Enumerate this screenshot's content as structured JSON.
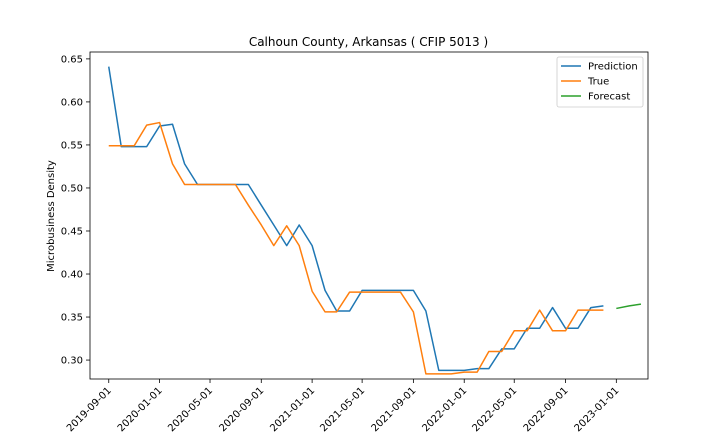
{
  "chart_data": {
    "type": "line",
    "title": "Calhoun County, Arkansas ( CFIP 5013 )",
    "xlabel": "",
    "ylabel": "Microbusiness Density",
    "x_ticks": [
      "2019-09-01",
      "2020-01-01",
      "2020-05-01",
      "2020-09-01",
      "2021-01-01",
      "2021-05-01",
      "2021-09-01",
      "2022-01-01",
      "2022-05-01",
      "2022-09-01",
      "2023-01-01"
    ],
    "y_ticks": [
      "0.30",
      "0.35",
      "0.40",
      "0.45",
      "0.50",
      "0.55",
      "0.60",
      "0.65"
    ],
    "ylim": [
      0.278,
      0.658
    ],
    "xlim": [
      "2019-07-18",
      "2023-03-18"
    ],
    "legend_position": "top-right",
    "grid": false,
    "series": [
      {
        "name": "Prediction",
        "color": "#1f77b4",
        "points": [
          [
            "2019-09-01",
            0.641
          ],
          [
            "2019-10-01",
            0.548
          ],
          [
            "2019-11-01",
            0.548
          ],
          [
            "2019-12-01",
            0.548
          ],
          [
            "2020-01-01",
            0.572
          ],
          [
            "2020-02-01",
            0.574
          ],
          [
            "2020-03-01",
            0.528
          ],
          [
            "2020-04-01",
            0.504
          ],
          [
            "2020-05-01",
            0.504
          ],
          [
            "2020-06-01",
            0.504
          ],
          [
            "2020-07-01",
            0.504
          ],
          [
            "2020-08-01",
            0.504
          ],
          [
            "2020-09-01",
            0.48
          ],
          [
            "2020-10-01",
            0.457
          ],
          [
            "2020-11-01",
            0.433
          ],
          [
            "2020-12-01",
            0.457
          ],
          [
            "2021-01-01",
            0.433
          ],
          [
            "2021-02-01",
            0.381
          ],
          [
            "2021-03-01",
            0.357
          ],
          [
            "2021-04-01",
            0.357
          ],
          [
            "2021-05-01",
            0.381
          ],
          [
            "2021-06-01",
            0.381
          ],
          [
            "2021-07-01",
            0.381
          ],
          [
            "2021-08-01",
            0.381
          ],
          [
            "2021-09-01",
            0.381
          ],
          [
            "2021-10-01",
            0.357
          ],
          [
            "2021-11-01",
            0.288
          ],
          [
            "2021-12-01",
            0.288
          ],
          [
            "2022-01-01",
            0.288
          ],
          [
            "2022-02-01",
            0.29
          ],
          [
            "2022-03-01",
            0.29
          ],
          [
            "2022-04-01",
            0.313
          ],
          [
            "2022-05-01",
            0.313
          ],
          [
            "2022-06-01",
            0.337
          ],
          [
            "2022-07-01",
            0.337
          ],
          [
            "2022-08-01",
            0.361
          ],
          [
            "2022-09-01",
            0.337
          ],
          [
            "2022-10-01",
            0.337
          ],
          [
            "2022-11-01",
            0.361
          ],
          [
            "2022-12-01",
            0.363
          ]
        ]
      },
      {
        "name": "True",
        "color": "#ff7f0e",
        "points": [
          [
            "2019-09-01",
            0.549
          ],
          [
            "2019-10-01",
            0.549
          ],
          [
            "2019-11-01",
            0.549
          ],
          [
            "2019-12-01",
            0.573
          ],
          [
            "2020-01-01",
            0.576
          ],
          [
            "2020-02-01",
            0.528
          ],
          [
            "2020-03-01",
            0.504
          ],
          [
            "2020-04-01",
            0.504
          ],
          [
            "2020-05-01",
            0.504
          ],
          [
            "2020-06-01",
            0.504
          ],
          [
            "2020-07-01",
            0.504
          ],
          [
            "2020-08-01",
            0.48
          ],
          [
            "2020-09-01",
            0.457
          ],
          [
            "2020-10-01",
            0.433
          ],
          [
            "2020-11-01",
            0.456
          ],
          [
            "2020-12-01",
            0.433
          ],
          [
            "2021-01-01",
            0.38
          ],
          [
            "2021-02-01",
            0.356
          ],
          [
            "2021-03-01",
            0.356
          ],
          [
            "2021-04-01",
            0.379
          ],
          [
            "2021-05-01",
            0.379
          ],
          [
            "2021-06-01",
            0.379
          ],
          [
            "2021-07-01",
            0.379
          ],
          [
            "2021-08-01",
            0.379
          ],
          [
            "2021-09-01",
            0.356
          ],
          [
            "2021-10-01",
            0.284
          ],
          [
            "2021-11-01",
            0.284
          ],
          [
            "2021-12-01",
            0.284
          ],
          [
            "2022-01-01",
            0.286
          ],
          [
            "2022-02-01",
            0.286
          ],
          [
            "2022-03-01",
            0.31
          ],
          [
            "2022-04-01",
            0.31
          ],
          [
            "2022-05-01",
            0.334
          ],
          [
            "2022-06-01",
            0.334
          ],
          [
            "2022-07-01",
            0.358
          ],
          [
            "2022-08-01",
            0.334
          ],
          [
            "2022-09-01",
            0.334
          ],
          [
            "2022-10-01",
            0.358
          ],
          [
            "2022-11-01",
            0.358
          ],
          [
            "2022-12-01",
            0.358
          ]
        ]
      },
      {
        "name": "Forecast",
        "color": "#2ca02c",
        "points": [
          [
            "2023-01-01",
            0.36
          ],
          [
            "2023-02-01",
            0.363
          ],
          [
            "2023-03-01",
            0.365
          ]
        ]
      }
    ]
  }
}
